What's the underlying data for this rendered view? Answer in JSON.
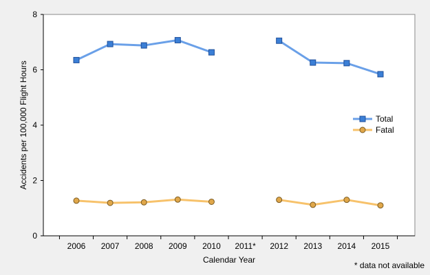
{
  "chart_data": {
    "type": "line",
    "categories": [
      "2006",
      "2007",
      "2008",
      "2009",
      "2010",
      "2011*",
      "2012",
      "2013",
      "2014",
      "2015"
    ],
    "series": [
      {
        "name": "Total",
        "color": "#6aa0e8",
        "marker_fill": "#3b7fd6",
        "marker": "square",
        "values": [
          6.35,
          6.93,
          6.88,
          7.07,
          6.63,
          null,
          7.05,
          6.26,
          6.24,
          5.84
        ]
      },
      {
        "name": "Fatal",
        "color": "#f7c26b",
        "marker_fill": "#e0a74a",
        "marker": "circle",
        "values": [
          1.27,
          1.19,
          1.21,
          1.31,
          1.23,
          null,
          1.3,
          1.12,
          1.3,
          1.1
        ]
      }
    ],
    "xlabel": "Calendar Year",
    "ylabel": "Accidents per 100,000 Flight Hours",
    "ylim": [
      0,
      8
    ],
    "yticks": [
      0,
      2,
      4,
      6,
      8
    ],
    "grid": false,
    "legend_position": "right",
    "footnote": "* data not available"
  }
}
